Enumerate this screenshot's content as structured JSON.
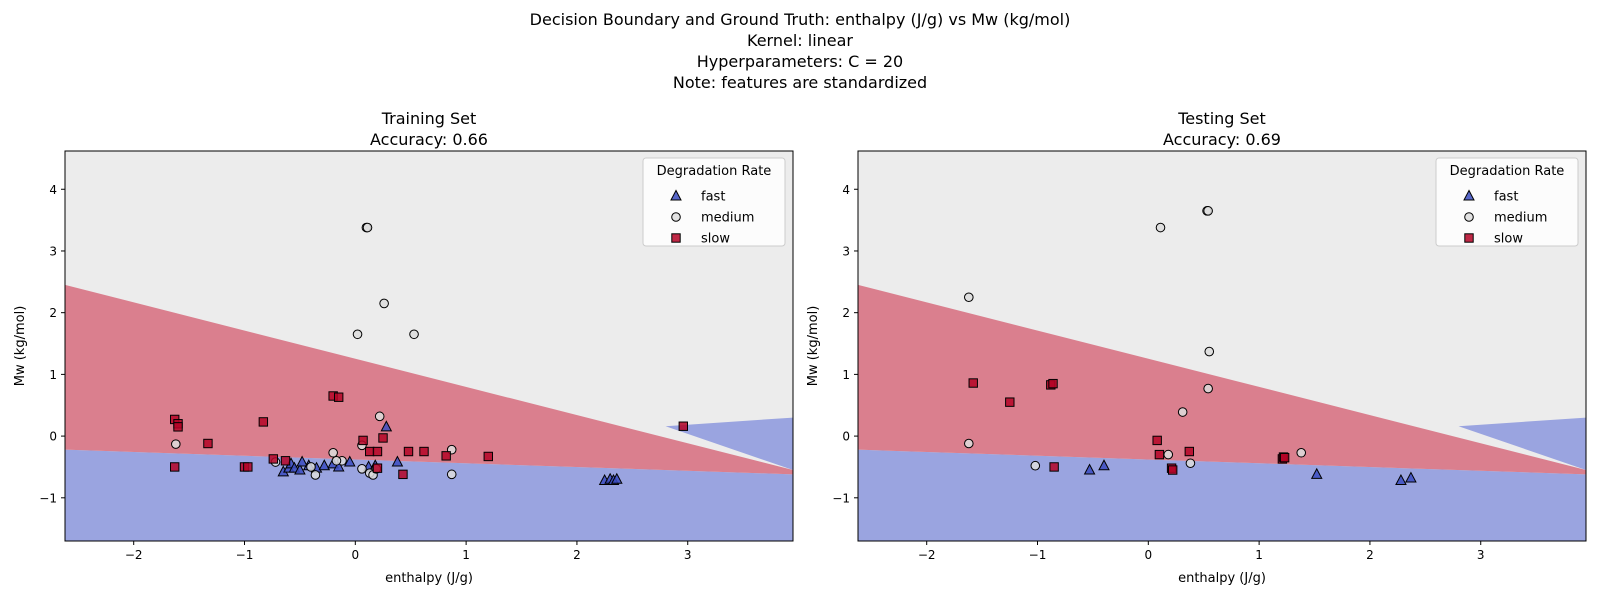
{
  "figure": {
    "suptitle_lines": [
      "Decision Boundary and Ground Truth: enthalpy (J/g) vs Mw (kg/mol)",
      "Kernel: linear",
      "Hyperparameters: C = 20",
      "Note: features are standardized"
    ]
  },
  "colors": {
    "fast": "#3b4cc0",
    "medium": "#dddddd",
    "slow": "#b40426",
    "region_fast": "#9aa4e0",
    "region_medium": "#ececec",
    "region_slow": "#da7f8e"
  },
  "chart_data": [
    {
      "type": "scatter",
      "title": "Training Set",
      "subtitle": "Accuracy: 0.66",
      "xlabel": "enthalpy (J/g)",
      "ylabel": "Mw (kg/mol)",
      "xlim": [
        -2.62,
        3.95
      ],
      "ylim": [
        -1.7,
        4.62
      ],
      "xticks": [
        -2,
        -1,
        0,
        1,
        2,
        3
      ],
      "yticks": [
        -1,
        0,
        1,
        2,
        3,
        4
      ],
      "grid": false,
      "legend": {
        "title": "Degradation Rate",
        "position": "top-right",
        "entries": [
          {
            "label": "fast",
            "marker": "triangle"
          },
          {
            "label": "medium",
            "marker": "circle"
          },
          {
            "label": "slow",
            "marker": "square"
          }
        ]
      },
      "decision_regions": {
        "slow_upper_boundary": [
          [
            -2.62,
            2.45
          ],
          [
            3.95,
            -0.55
          ]
        ],
        "slow_lower_boundary": [
          [
            -2.62,
            -0.22
          ],
          [
            3.95,
            -0.62
          ]
        ],
        "fast_upper_wedge": [
          [
            2.8,
            0.16
          ],
          [
            3.95,
            0.3
          ]
        ]
      },
      "series": [
        {
          "name": "fast",
          "marker": "triangle",
          "points": [
            [
              -0.65,
              -0.58
            ],
            [
              -0.6,
              -0.52
            ],
            [
              -0.58,
              -0.45
            ],
            [
              -0.55,
              -0.52
            ],
            [
              -0.5,
              -0.55
            ],
            [
              -0.48,
              -0.42
            ],
            [
              -0.42,
              -0.48
            ],
            [
              -0.35,
              -0.52
            ],
            [
              -0.28,
              -0.48
            ],
            [
              -0.2,
              -0.45
            ],
            [
              -0.15,
              -0.5
            ],
            [
              -0.05,
              -0.42
            ],
            [
              0.12,
              -0.5
            ],
            [
              0.18,
              -0.48
            ],
            [
              0.28,
              0.15
            ],
            [
              0.38,
              -0.42
            ],
            [
              2.25,
              -0.72
            ],
            [
              2.3,
              -0.7
            ],
            [
              2.33,
              -0.72
            ],
            [
              2.36,
              -0.7
            ]
          ]
        },
        {
          "name": "medium",
          "marker": "circle",
          "points": [
            [
              0.1,
              3.38
            ],
            [
              0.11,
              3.38
            ],
            [
              0.26,
              2.15
            ],
            [
              0.02,
              1.65
            ],
            [
              0.53,
              1.65
            ],
            [
              0.22,
              0.32
            ],
            [
              -1.62,
              -0.13
            ],
            [
              -0.2,
              -0.27
            ],
            [
              -0.12,
              -0.4
            ],
            [
              -0.17,
              -0.4
            ],
            [
              -0.4,
              -0.5
            ],
            [
              -0.36,
              -0.63
            ],
            [
              -0.72,
              -0.42
            ],
            [
              0.06,
              -0.53
            ],
            [
              0.13,
              -0.6
            ],
            [
              0.16,
              -0.63
            ],
            [
              0.19,
              -0.53
            ],
            [
              0.06,
              -0.15
            ],
            [
              0.87,
              -0.22
            ],
            [
              0.87,
              -0.62
            ]
          ]
        },
        {
          "name": "slow",
          "marker": "square",
          "points": [
            [
              -1.63,
              0.27
            ],
            [
              -1.6,
              0.2
            ],
            [
              -1.6,
              0.15
            ],
            [
              -1.33,
              -0.12
            ],
            [
              -0.83,
              0.23
            ],
            [
              -1.63,
              -0.5
            ],
            [
              -1.0,
              -0.5
            ],
            [
              -0.97,
              -0.5
            ],
            [
              -0.74,
              -0.37
            ],
            [
              -0.63,
              -0.4
            ],
            [
              -0.2,
              0.65
            ],
            [
              -0.15,
              0.63
            ],
            [
              0.07,
              -0.07
            ],
            [
              0.13,
              -0.25
            ],
            [
              0.2,
              -0.25
            ],
            [
              0.25,
              -0.03
            ],
            [
              0.2,
              -0.52
            ],
            [
              0.43,
              -0.62
            ],
            [
              0.48,
              -0.25
            ],
            [
              0.62,
              -0.25
            ],
            [
              0.82,
              -0.32
            ],
            [
              1.2,
              -0.33
            ],
            [
              2.96,
              0.16
            ]
          ]
        }
      ]
    },
    {
      "type": "scatter",
      "title": "Testing Set",
      "subtitle": "Accuracy: 0.69",
      "xlabel": "enthalpy (J/g)",
      "ylabel": "Mw (kg/mol)",
      "xlim": [
        -2.62,
        3.95
      ],
      "ylim": [
        -1.7,
        4.62
      ],
      "xticks": [
        -2,
        -1,
        0,
        1,
        2,
        3
      ],
      "yticks": [
        -1,
        0,
        1,
        2,
        3,
        4
      ],
      "grid": false,
      "legend": {
        "title": "Degradation Rate",
        "position": "top-right",
        "entries": [
          {
            "label": "fast",
            "marker": "triangle"
          },
          {
            "label": "medium",
            "marker": "circle"
          },
          {
            "label": "slow",
            "marker": "square"
          }
        ]
      },
      "decision_regions": {
        "slow_upper_boundary": [
          [
            -2.62,
            2.45
          ],
          [
            3.95,
            -0.55
          ]
        ],
        "slow_lower_boundary": [
          [
            -2.62,
            -0.22
          ],
          [
            3.95,
            -0.62
          ]
        ],
        "fast_upper_wedge": [
          [
            2.8,
            0.16
          ],
          [
            3.95,
            0.3
          ]
        ]
      },
      "series": [
        {
          "name": "fast",
          "marker": "triangle",
          "points": [
            [
              -0.53,
              -0.55
            ],
            [
              -0.4,
              -0.48
            ],
            [
              1.52,
              -0.62
            ],
            [
              2.28,
              -0.72
            ],
            [
              2.37,
              -0.68
            ]
          ]
        },
        {
          "name": "medium",
          "marker": "circle",
          "points": [
            [
              0.53,
              3.65
            ],
            [
              0.54,
              3.65
            ],
            [
              0.11,
              3.38
            ],
            [
              -1.62,
              2.25
            ],
            [
              0.55,
              1.37
            ],
            [
              0.54,
              0.77
            ],
            [
              0.31,
              0.39
            ],
            [
              -1.62,
              -0.12
            ],
            [
              -1.02,
              -0.48
            ],
            [
              0.18,
              -0.3
            ],
            [
              0.38,
              -0.44
            ],
            [
              1.38,
              -0.27
            ]
          ]
        },
        {
          "name": "slow",
          "marker": "square",
          "points": [
            [
              -1.58,
              0.86
            ],
            [
              -1.25,
              0.55
            ],
            [
              -0.88,
              0.83
            ],
            [
              -0.86,
              0.85
            ],
            [
              -0.85,
              -0.5
            ],
            [
              0.08,
              -0.07
            ],
            [
              0.1,
              -0.3
            ],
            [
              0.21,
              -0.52
            ],
            [
              0.22,
              -0.55
            ],
            [
              0.37,
              -0.25
            ],
            [
              1.21,
              -0.37
            ],
            [
              1.22,
              -0.34
            ],
            [
              1.23,
              -0.35
            ]
          ]
        }
      ]
    }
  ]
}
